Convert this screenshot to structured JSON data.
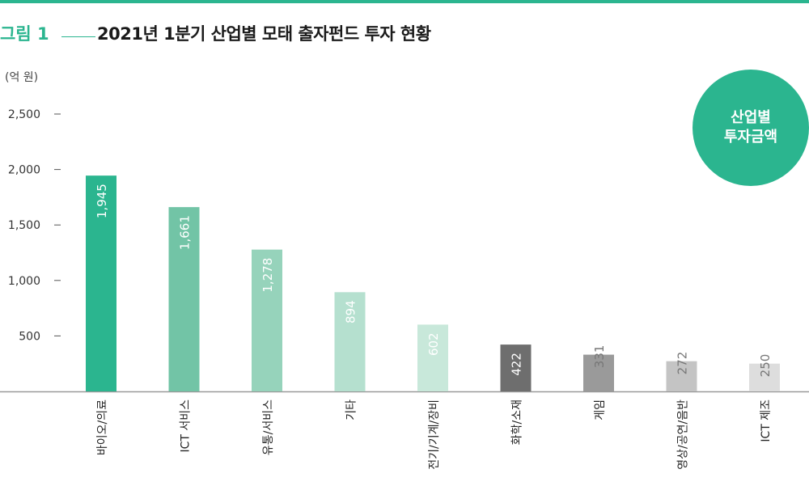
{
  "header": {
    "figure_label": "그림 1",
    "title": "2021년 1분기 산업별 모태 출자펀드 투자 현황"
  },
  "badge": {
    "line1": "산업별",
    "line2": "투자금액"
  },
  "colors": {
    "accent": "#2bb58f"
  },
  "chart_data": {
    "type": "bar",
    "title": "2021년 1분기 산업별 모태 출자펀드 투자 현황",
    "ylabel": "(억 원)",
    "xlabel": "",
    "ylim": [
      0,
      2500
    ],
    "yticks": [
      500,
      1000,
      1500,
      2000,
      2500
    ],
    "ytick_labels": [
      "500",
      "1,000",
      "1,500",
      "2,000",
      "2,500"
    ],
    "grid": false,
    "categories": [
      "바이오/의료",
      "ICT 서비스",
      "유통/서비스",
      "기타",
      "전기/기계/장비",
      "화학/소재",
      "게임",
      "영상/공연/음반",
      "ICT 제조"
    ],
    "values": [
      1945,
      1661,
      1278,
      894,
      602,
      422,
      331,
      272,
      250
    ],
    "value_labels": [
      "1,945",
      "1,661",
      "1,278",
      "894",
      "602",
      "422",
      "331",
      "272",
      "250"
    ],
    "bar_colors": [
      "#2bb58f",
      "#72c4a6",
      "#96d3bb",
      "#b5e0cf",
      "#c8e8da",
      "#6e6e6e",
      "#9a9a9a",
      "#c4c4c4",
      "#dddddd"
    ],
    "label_colors": [
      "#ffffff",
      "#ffffff",
      "#ffffff",
      "#ffffff",
      "#ffffff",
      "#ffffff",
      "#777777",
      "#777777",
      "#777777"
    ],
    "label_inside": [
      true,
      true,
      true,
      true,
      true,
      true,
      false,
      false,
      false
    ]
  }
}
